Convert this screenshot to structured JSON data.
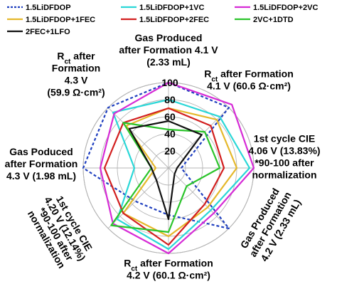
{
  "chart_data": {
    "type": "radar",
    "title": "",
    "rlim": [
      0,
      100
    ],
    "ticks": [
      {
        "value": 20,
        "label": "20"
      },
      {
        "value": 40,
        "label": "40"
      },
      {
        "value": 60,
        "label": "60"
      },
      {
        "value": 80,
        "label": "80"
      },
      {
        "value": 100,
        "label": "100"
      }
    ],
    "grid": true,
    "legend_position": "top",
    "axes": [
      {
        "label_lines": [
          "Gas Produced",
          "after Formation 4.1 V",
          "(2.33 mL)"
        ]
      },
      {
        "label_lines": [
          "R$ct after Formation",
          "4.1 V (60.6 Ω·cm²)"
        ]
      },
      {
        "label_lines": [
          "1st cycle CIE",
          "4.06 V (13.83%)",
          "*90-100 after",
          "normalization"
        ]
      },
      {
        "label_lines": [
          "Gas Produced",
          "after Formation",
          "4.2 V (2.33 mL)"
        ]
      },
      {
        "label_lines": [
          "R$ct after Formation",
          "4.2 V (60.1 Ω·cm²)"
        ]
      },
      {
        "label_lines": [
          "1st cycle CIE",
          "4.20 V (12.14%)",
          "*90-100 after",
          "normalization"
        ]
      },
      {
        "label_lines": [
          "Gas Poduced",
          "after Formation",
          "4.3 V (1.98 mL)"
        ]
      },
      {
        "label_lines": [
          "R$ct after",
          "Formation",
          "4.3 V",
          "(59.9 Ω·cm²)"
        ]
      }
    ],
    "series": [
      {
        "name": "1.5LiDFDOP",
        "color": "#1f3fbf",
        "dashed": true,
        "values": [
          100,
          100,
          15,
          100,
          55,
          55,
          100,
          100
        ]
      },
      {
        "name": "1.5LiDFDOP+1VC",
        "color": "#2ad7d7",
        "dashed": false,
        "values": [
          80,
          85,
          95,
          70,
          95,
          85,
          40,
          92
        ]
      },
      {
        "name": "1.5LiDFDOP+2VC",
        "color": "#d62bd6",
        "dashed": false,
        "values": [
          100,
          105,
          100,
          75,
          100,
          92,
          80,
          90
        ]
      },
      {
        "name": "1.5LiDFDOP+1FEC",
        "color": "#e5b82b",
        "dashed": false,
        "values": [
          70,
          80,
          80,
          65,
          80,
          75,
          15,
          70
        ]
      },
      {
        "name": "1.5LiDFDOP+2FEC",
        "color": "#d21f1f",
        "dashed": false,
        "values": [
          70,
          70,
          65,
          60,
          90,
          75,
          75,
          75
        ]
      },
      {
        "name": "2VC+1DTD",
        "color": "#2bc42b",
        "dashed": false,
        "values": [
          45,
          60,
          60,
          30,
          75,
          95,
          20,
          75
        ]
      },
      {
        "name": "2FEC+1LFO",
        "color": "#111111",
        "dashed": false,
        "values": [
          55,
          55,
          10,
          10,
          60,
          20,
          20,
          65
        ]
      }
    ]
  }
}
